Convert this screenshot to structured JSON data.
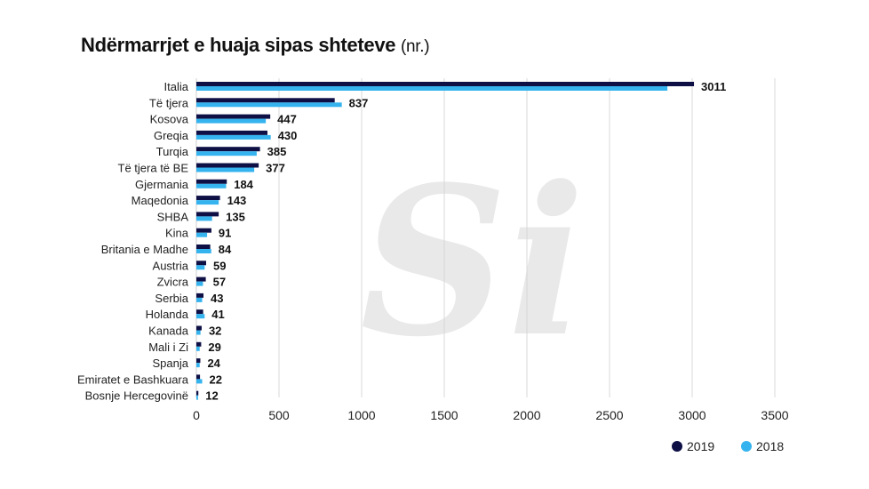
{
  "title": "Ndërmarrjet e huaja sipas shteteve",
  "title_unit": "(nr.)",
  "watermark": "Si",
  "chart_data": {
    "type": "bar",
    "orientation": "horizontal",
    "categories": [
      "Italia",
      "Të tjera",
      "Kosova",
      "Greqia",
      "Turqia",
      "Të tjera të BE",
      "Gjermania",
      "Maqedonia",
      "SHBA",
      "Kina",
      "Britania e Madhe",
      "Austria",
      "Zvicra",
      "Serbia",
      "Holanda",
      "Kanada",
      "Mali i Zi",
      "Spanja",
      "Emiratet e Bashkuara",
      "Bosnje Hercegovinë"
    ],
    "series": [
      {
        "name": "2019",
        "color": "#0d0f45",
        "values": [
          3011,
          837,
          447,
          430,
          385,
          377,
          184,
          143,
          135,
          91,
          84,
          59,
          57,
          43,
          41,
          32,
          29,
          24,
          22,
          12
        ]
      },
      {
        "name": "2018",
        "color": "#35b3ee",
        "values": [
          2850,
          880,
          420,
          450,
          365,
          350,
          180,
          135,
          95,
          65,
          90,
          50,
          40,
          35,
          50,
          25,
          20,
          20,
          35,
          10
        ]
      }
    ],
    "labeled_series": "2019",
    "xlim": [
      0,
      3500
    ],
    "xticks": [
      "0",
      "500",
      "1000",
      "1500",
      "2000",
      "2500",
      "3000",
      "3500"
    ],
    "grid": true,
    "legend_position": "bottom-right"
  }
}
